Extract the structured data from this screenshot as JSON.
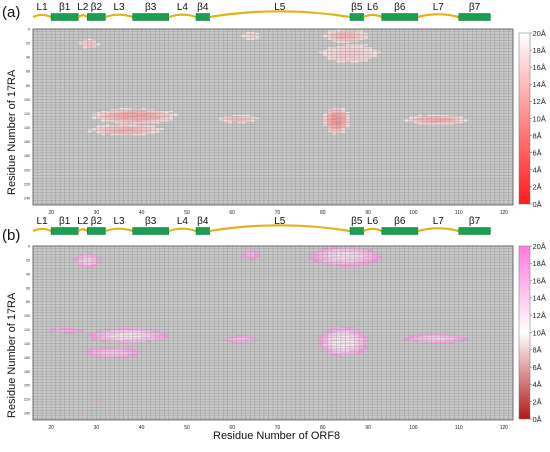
{
  "figure": {
    "x_axis_label": "Residue Number of ORF8"
  },
  "chart_data": [
    {
      "type": "heatmap",
      "panel_label": "(a)",
      "ylabel": "Residue Number of 17RA",
      "xlabel": "",
      "x_ticks": [
        20,
        30,
        40,
        50,
        60,
        70,
        80,
        90,
        100,
        110,
        120
      ],
      "xlim": [
        16,
        122
      ],
      "y_ticks": [
        0,
        20,
        40,
        60,
        80,
        100,
        120,
        140,
        160,
        180,
        200,
        220,
        240
      ],
      "ylim": [
        0,
        250
      ],
      "colorbar": {
        "labels": [
          "20Å",
          "18Å",
          "16Å",
          "14Å",
          "12Å",
          "10Å",
          "8Å",
          "6Å",
          "4Å",
          "2Å",
          "0Å"
        ],
        "range": [
          0,
          20
        ],
        "colors": [
          "#ff1a1a",
          "#ffffff"
        ]
      },
      "background_color": "#c9c9c9",
      "secondary_structure": [
        {
          "label": "L1",
          "type": "loop",
          "start": 16,
          "end": 20
        },
        {
          "label": "β1",
          "type": "strand",
          "start": 20,
          "end": 26
        },
        {
          "label": "L2",
          "type": "loop",
          "start": 26,
          "end": 28
        },
        {
          "label": "β2",
          "type": "strand",
          "start": 28,
          "end": 32
        },
        {
          "label": "L3",
          "type": "loop",
          "start": 32,
          "end": 38
        },
        {
          "label": "β3",
          "type": "strand",
          "start": 38,
          "end": 46
        },
        {
          "label": "L4",
          "type": "loop",
          "start": 46,
          "end": 52
        },
        {
          "label": "β4",
          "type": "strand",
          "start": 52,
          "end": 55
        },
        {
          "label": "L5",
          "type": "loop",
          "start": 55,
          "end": 86
        },
        {
          "label": "β5",
          "type": "strand",
          "start": 86,
          "end": 89
        },
        {
          "label": "L6",
          "type": "loop",
          "start": 89,
          "end": 93
        },
        {
          "label": "β6",
          "type": "strand",
          "start": 93,
          "end": 101
        },
        {
          "label": "L7",
          "type": "loop",
          "start": 101,
          "end": 110
        },
        {
          "label": "β7",
          "type": "strand",
          "start": 110,
          "end": 117
        }
      ],
      "contact_regions": [
        {
          "x": [
            26,
            31
          ],
          "y": [
            14,
            28
          ],
          "min_distance": 14
        },
        {
          "x": [
            29,
            48
          ],
          "y": [
            112,
            135
          ],
          "min_distance": 10
        },
        {
          "x": [
            28,
            45
          ],
          "y": [
            135,
            152
          ],
          "min_distance": 12
        },
        {
          "x": [
            57,
            66
          ],
          "y": [
            122,
            134
          ],
          "min_distance": 13
        },
        {
          "x": [
            62,
            66
          ],
          "y": [
            2,
            18
          ],
          "min_distance": 16
        },
        {
          "x": [
            80,
            90
          ],
          "y": [
            0,
            20
          ],
          "min_distance": 12
        },
        {
          "x": [
            79,
            93
          ],
          "y": [
            20,
            50
          ],
          "min_distance": 15
        },
        {
          "x": [
            80,
            86
          ],
          "y": [
            110,
            150
          ],
          "min_distance": 8
        },
        {
          "x": [
            98,
            112
          ],
          "y": [
            122,
            136
          ],
          "min_distance": 11
        },
        {
          "x": [
            81,
            83
          ],
          "y": [
            228,
            232
          ],
          "min_distance": 18
        }
      ]
    },
    {
      "type": "heatmap",
      "panel_label": "(b)",
      "ylabel": "Residue Number of 17RA",
      "xlabel": "Residue Number of ORF8",
      "x_ticks": [
        20,
        30,
        40,
        50,
        60,
        70,
        80,
        90,
        100,
        110,
        120
      ],
      "xlim": [
        16,
        122
      ],
      "y_ticks": [
        0,
        20,
        40,
        60,
        80,
        100,
        120,
        140,
        160,
        180,
        200,
        220,
        240
      ],
      "ylim": [
        0,
        250
      ],
      "colorbar": {
        "labels": [
          "20Å",
          "18Å",
          "16Å",
          "14Å",
          "12Å",
          "10Å",
          "8Å",
          "6Å",
          "4Å",
          "2Å",
          "0Å"
        ],
        "range": [
          0,
          20
        ],
        "colors": [
          "#b01818",
          "#ffffff",
          "#ff7adf"
        ]
      },
      "background_color": "#c9c9c9",
      "secondary_structure": [
        {
          "label": "L1",
          "type": "loop",
          "start": 16,
          "end": 20
        },
        {
          "label": "β1",
          "type": "strand",
          "start": 20,
          "end": 26
        },
        {
          "label": "L2",
          "type": "loop",
          "start": 26,
          "end": 28
        },
        {
          "label": "β2",
          "type": "strand",
          "start": 28,
          "end": 32
        },
        {
          "label": "L3",
          "type": "loop",
          "start": 32,
          "end": 38
        },
        {
          "label": "β3",
          "type": "strand",
          "start": 38,
          "end": 46
        },
        {
          "label": "L4",
          "type": "loop",
          "start": 46,
          "end": 52
        },
        {
          "label": "β4",
          "type": "strand",
          "start": 52,
          "end": 55
        },
        {
          "label": "L5",
          "type": "loop",
          "start": 55,
          "end": 86
        },
        {
          "label": "β5",
          "type": "strand",
          "start": 86,
          "end": 89
        },
        {
          "label": "L6",
          "type": "loop",
          "start": 89,
          "end": 93
        },
        {
          "label": "β6",
          "type": "strand",
          "start": 93,
          "end": 101
        },
        {
          "label": "L7",
          "type": "loop",
          "start": 101,
          "end": 110
        },
        {
          "label": "β7",
          "type": "strand",
          "start": 110,
          "end": 117
        }
      ],
      "contact_regions": [
        {
          "x": [
            25,
            31
          ],
          "y": [
            10,
            32
          ],
          "min_distance": 12
        },
        {
          "x": [
            18,
            28
          ],
          "y": [
            118,
            126
          ],
          "min_distance": 16
        },
        {
          "x": [
            28,
            46
          ],
          "y": [
            118,
            140
          ],
          "min_distance": 10
        },
        {
          "x": [
            27,
            40
          ],
          "y": [
            145,
            162
          ],
          "min_distance": 13
        },
        {
          "x": [
            58,
            66
          ],
          "y": [
            128,
            140
          ],
          "min_distance": 14
        },
        {
          "x": [
            62,
            66
          ],
          "y": [
            4,
            20
          ],
          "min_distance": 15
        },
        {
          "x": [
            77,
            93
          ],
          "y": [
            0,
            30
          ],
          "min_distance": 11
        },
        {
          "x": [
            79,
            90
          ],
          "y": [
            116,
            160
          ],
          "min_distance": 9
        },
        {
          "x": [
            98,
            112
          ],
          "y": [
            126,
            140
          ],
          "min_distance": 12
        },
        {
          "x": [
            29,
            31
          ],
          "y": [
            218,
            224
          ],
          "min_distance": 17
        },
        {
          "x": [
            81,
            83
          ],
          "y": [
            226,
            232
          ],
          "min_distance": 17
        }
      ]
    }
  ]
}
